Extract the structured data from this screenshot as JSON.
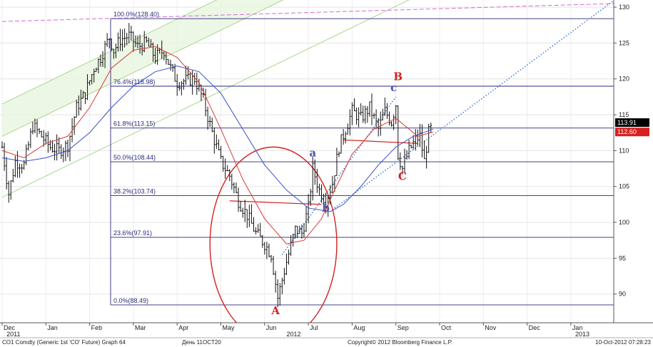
{
  "chart_data": {
    "type": "candlestick",
    "instrument": "CO1 Comdty (Generic 1st 'CO' Future)",
    "ylim": [
      86,
      131
    ],
    "y_ticks": [
      90,
      95,
      100,
      105,
      110,
      115,
      120,
      125,
      130
    ],
    "x_ticks": [
      {
        "label": "Dec",
        "m": 0
      },
      {
        "label": "Jan",
        "m": 1
      },
      {
        "label": "Feb",
        "m": 2
      },
      {
        "label": "Mar",
        "m": 3
      },
      {
        "label": "Apr",
        "m": 4
      },
      {
        "label": "May",
        "m": 5
      },
      {
        "label": "Jun",
        "m": 6
      },
      {
        "label": "Jul",
        "m": 7
      },
      {
        "label": "Aug",
        "m": 8
      },
      {
        "label": "Sep",
        "m": 9
      },
      {
        "label": "Oct",
        "m": 10
      },
      {
        "label": "Nov",
        "m": 11
      },
      {
        "label": "Dec",
        "m": 12
      },
      {
        "label": "Jan",
        "m": 13
      }
    ],
    "year_labels": [
      {
        "label": "2011",
        "m": 0.1
      },
      {
        "label": "2012",
        "m": 6.5
      },
      {
        "label": "2013",
        "m": 13.1
      }
    ],
    "fib_levels": [
      {
        "label": "100.0%(128.40)",
        "value": 128.4
      },
      {
        "label": "76.4%(118.98)",
        "value": 118.98
      },
      {
        "label": "61.8%(113.15)",
        "value": 113.15
      },
      {
        "label": "50.0%(108.44)",
        "value": 108.44
      },
      {
        "label": "38.2%(103.74)",
        "value": 103.74
      },
      {
        "label": "23.6%(97.91)",
        "value": 97.91
      },
      {
        "label": "0.0%(88.49)",
        "value": 88.49
      }
    ],
    "last_price_tags": [
      {
        "label": "113.91",
        "value": 113.91,
        "color": "#000000"
      },
      {
        "label": "112.60",
        "value": 112.6,
        "color": "#d62020"
      }
    ],
    "wave_labels": [
      {
        "label": "A",
        "m": 6.25,
        "value": 87.2,
        "color": "#d62020"
      },
      {
        "label": "a",
        "m": 7.1,
        "value": 109.2,
        "color": "#5050a8"
      },
      {
        "label": "b",
        "m": 7.4,
        "value": 101.5,
        "color": "#5050a8"
      },
      {
        "label": "B",
        "m": 9.05,
        "value": 119.8,
        "color": "#d62020"
      },
      {
        "label": "c",
        "m": 8.95,
        "value": 118.3,
        "color": "#5050a8"
      },
      {
        "label": "C",
        "m": 9.15,
        "value": 105.9,
        "color": "#d62020"
      }
    ],
    "price_path": [
      [
        0.0,
        110.5
      ],
      [
        0.15,
        104.0
      ],
      [
        0.3,
        108.5
      ],
      [
        0.5,
        108.0
      ],
      [
        0.7,
        113.5
      ],
      [
        0.9,
        112.0
      ],
      [
        1.1,
        110.5
      ],
      [
        1.3,
        110.0
      ],
      [
        1.5,
        110.8
      ],
      [
        1.7,
        116.0
      ],
      [
        1.9,
        118.0
      ],
      [
        2.1,
        121.5
      ],
      [
        2.25,
        123.0
      ],
      [
        2.45,
        125.8
      ],
      [
        2.55,
        124.0
      ],
      [
        2.7,
        125.5
      ],
      [
        2.9,
        126.0
      ],
      [
        3.1,
        124.5
      ],
      [
        3.3,
        125.0
      ],
      [
        3.5,
        123.0
      ],
      [
        3.7,
        124.0
      ],
      [
        3.85,
        121.5
      ],
      [
        4.0,
        119.5
      ],
      [
        4.2,
        119.8
      ],
      [
        4.4,
        120.0
      ],
      [
        4.6,
        117.0
      ],
      [
        4.8,
        112.5
      ],
      [
        5.0,
        108.5
      ],
      [
        5.2,
        106.5
      ],
      [
        5.4,
        103.0
      ],
      [
        5.6,
        101.0
      ],
      [
        5.8,
        98.5
      ],
      [
        6.0,
        97.0
      ],
      [
        6.15,
        95.5
      ],
      [
        6.3,
        89.5
      ],
      [
        6.5,
        94.5
      ],
      [
        6.7,
        99.0
      ],
      [
        6.85,
        98.5
      ],
      [
        7.0,
        102.0
      ],
      [
        7.1,
        107.5
      ],
      [
        7.25,
        104.5
      ],
      [
        7.4,
        103.0
      ],
      [
        7.55,
        105.5
      ],
      [
        7.7,
        110.5
      ],
      [
        7.85,
        113.0
      ],
      [
        8.0,
        115.5
      ],
      [
        8.2,
        114.5
      ],
      [
        8.4,
        116.0
      ],
      [
        8.6,
        113.0
      ],
      [
        8.75,
        115.5
      ],
      [
        8.9,
        114.0
      ],
      [
        9.0,
        116.5
      ],
      [
        9.05,
        109.5
      ],
      [
        9.15,
        107.5
      ],
      [
        9.3,
        110.0
      ],
      [
        9.45,
        111.5
      ],
      [
        9.55,
        112.0
      ],
      [
        9.65,
        108.5
      ],
      [
        9.75,
        112.5
      ],
      [
        9.85,
        113.5
      ]
    ],
    "ma_fast": [
      [
        0.0,
        110.0
      ],
      [
        0.5,
        109.0
      ],
      [
        1.0,
        111.0
      ],
      [
        1.5,
        112.0
      ],
      [
        2.0,
        116.0
      ],
      [
        2.5,
        121.5
      ],
      [
        3.0,
        124.0
      ],
      [
        3.5,
        124.5
      ],
      [
        4.0,
        123.0
      ],
      [
        4.5,
        119.5
      ],
      [
        5.0,
        113.0
      ],
      [
        5.5,
        106.0
      ],
      [
        6.0,
        100.5
      ],
      [
        6.5,
        97.0
      ],
      [
        6.9,
        97.5
      ],
      [
        7.3,
        100.5
      ],
      [
        7.6,
        104.5
      ],
      [
        8.0,
        109.5
      ],
      [
        8.5,
        113.0
      ],
      [
        9.0,
        114.5
      ],
      [
        9.5,
        112.0
      ],
      [
        9.85,
        112.6
      ]
    ],
    "ma_slow": [
      [
        0.0,
        109.0
      ],
      [
        0.5,
        108.5
      ],
      [
        1.0,
        109.0
      ],
      [
        1.5,
        110.0
      ],
      [
        2.0,
        112.5
      ],
      [
        2.5,
        116.0
      ],
      [
        3.0,
        119.0
      ],
      [
        3.5,
        121.0
      ],
      [
        4.0,
        121.8
      ],
      [
        4.5,
        121.0
      ],
      [
        5.0,
        118.0
      ],
      [
        5.5,
        113.0
      ],
      [
        6.0,
        108.0
      ],
      [
        6.5,
        104.5
      ],
      [
        7.0,
        102.0
      ],
      [
        7.5,
        101.5
      ],
      [
        7.8,
        102.5
      ],
      [
        8.2,
        105.0
      ],
      [
        8.6,
        108.0
      ],
      [
        9.0,
        110.5
      ],
      [
        9.4,
        112.0
      ],
      [
        9.85,
        113.0
      ]
    ],
    "channel_lines": [
      [
        [
          0.0,
          112.0
        ],
        [
          9.8,
          141.0
        ]
      ],
      [
        [
          0.0,
          116.5
        ],
        [
          9.8,
          145.5
        ]
      ],
      [
        [
          0.0,
          103.5
        ],
        [
          9.8,
          132.5
        ]
      ]
    ],
    "channel_fill": [
      [
        0.0,
        112.0
      ],
      [
        9.8,
        141.0
      ],
      [
        9.8,
        145.5
      ],
      [
        0.0,
        116.5
      ]
    ],
    "magenta_line": [
      [
        0.0,
        128.0
      ],
      [
        14.0,
        130.5
      ]
    ],
    "dotted_lines": [
      [
        [
          6.4,
          95.5
        ],
        [
          9.0,
          117.5
        ]
      ],
      [
        [
          7.6,
          102.0
        ],
        [
          14.0,
          131.0
        ]
      ]
    ],
    "red_trend_lines": [
      [
        [
          5.2,
          103.0
        ],
        [
          7.3,
          102.5
        ]
      ],
      [
        [
          7.8,
          111.5
        ],
        [
          9.5,
          111.0
        ]
      ]
    ],
    "circle": {
      "cx_m": 6.2,
      "cy": 97.0,
      "rx_m": 1.45,
      "ry": 13.5
    },
    "footer": {
      "left": "CO1 Comdty (Generic 1st 'CO' Future) Graph 64",
      "middle": "День 11OCT20",
      "copyright": "Copyright© 2012 Bloomberg Finance L.P.",
      "right": "10-Oct-2012 07:28:23"
    }
  }
}
